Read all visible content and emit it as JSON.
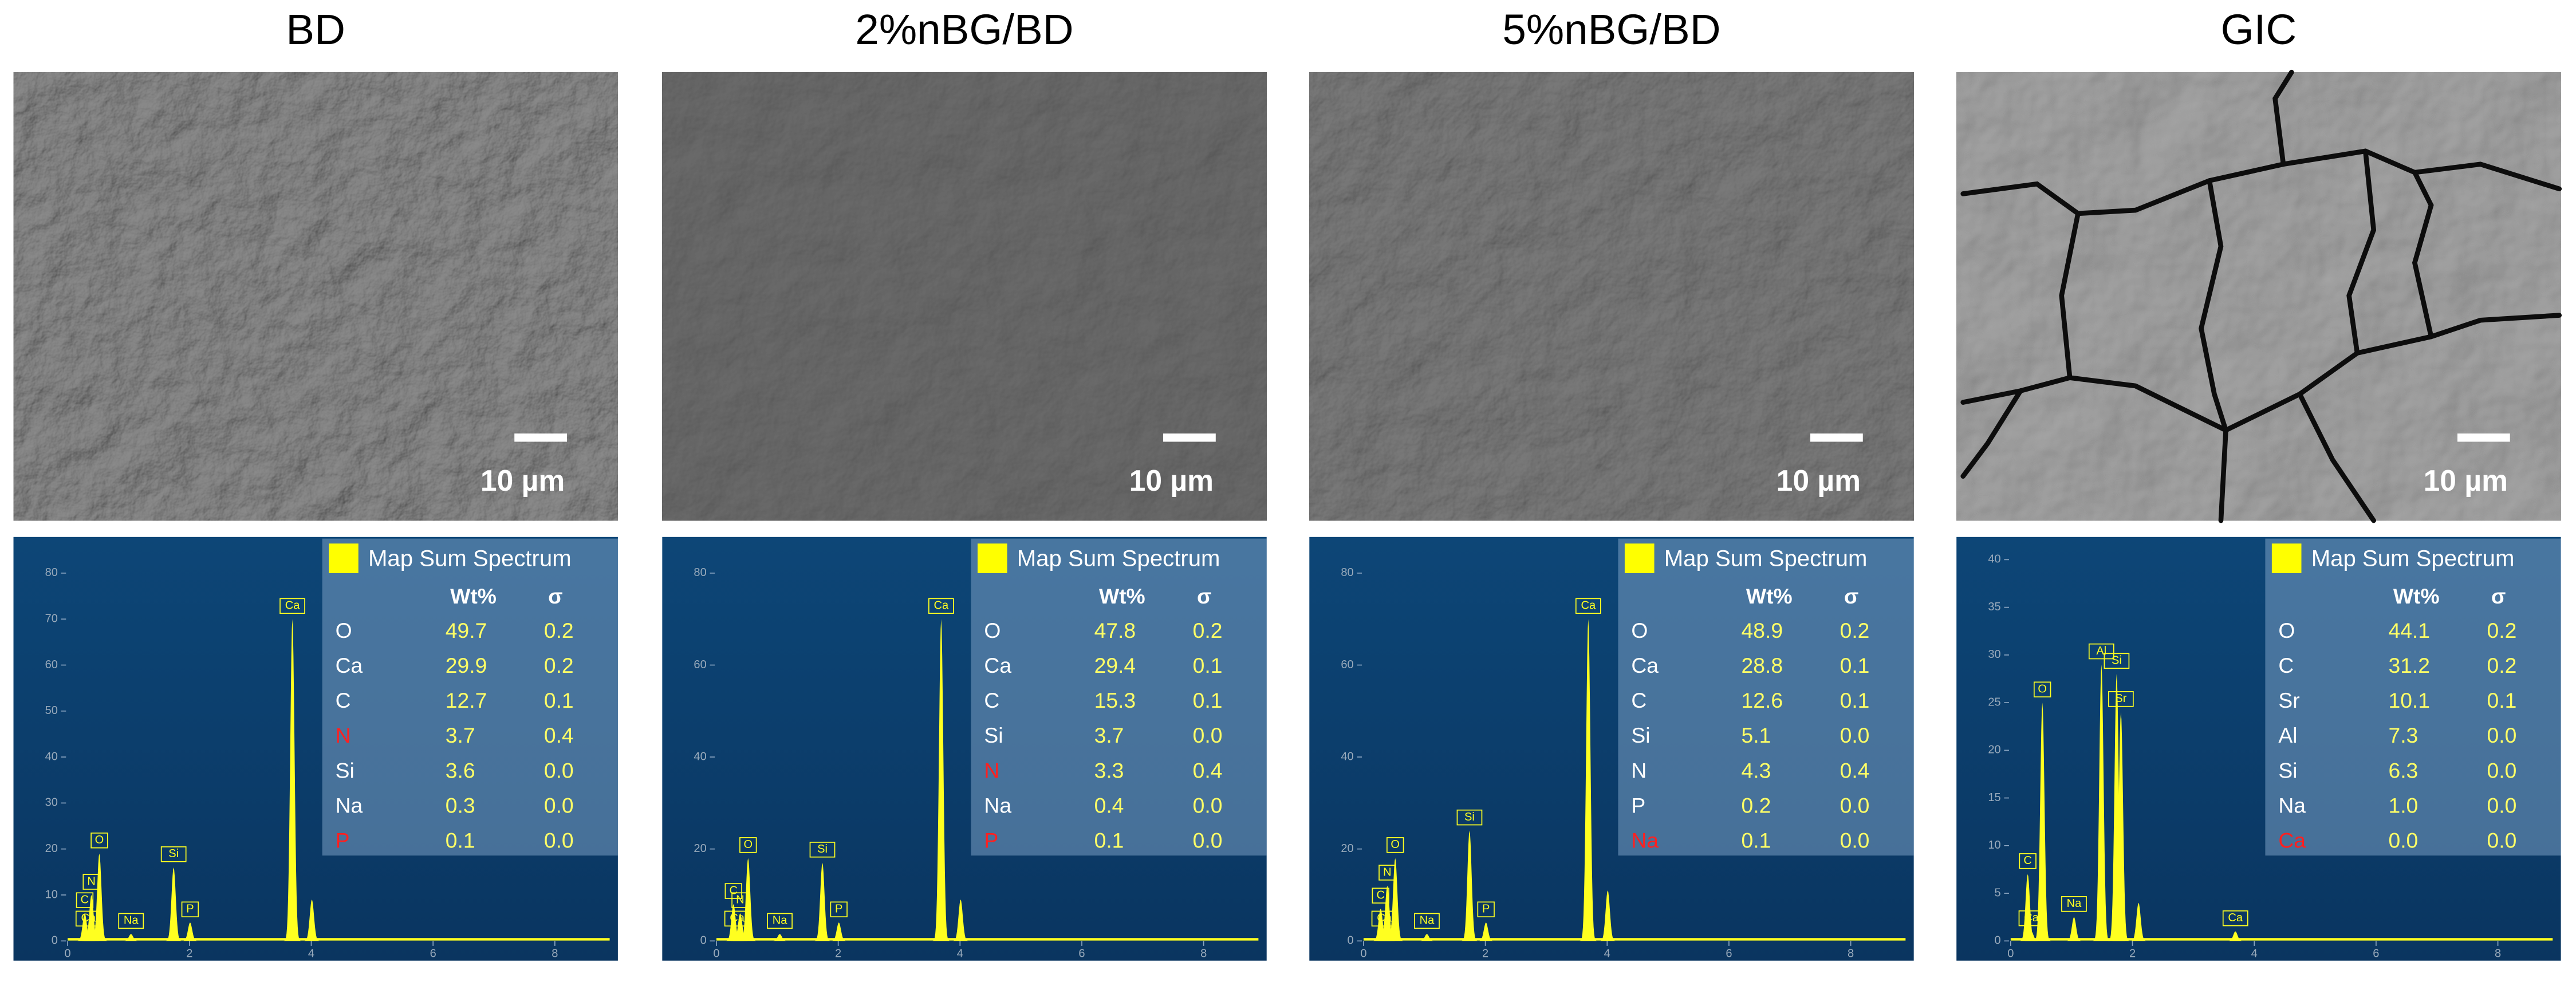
{
  "panels": [
    {
      "title": "BD",
      "scale_label": "10 µm",
      "spectrum": {
        "legend_title": "Map Sum Spectrum",
        "header": [
          "Wt%",
          "σ"
        ],
        "rows": [
          {
            "element": "O",
            "wt": "49.7",
            "sigma": "0.2",
            "color": "#ffffff"
          },
          {
            "element": "Ca",
            "wt": "29.9",
            "sigma": "0.2",
            "color": "#ffffff"
          },
          {
            "element": "C",
            "wt": "12.7",
            "sigma": "0.1",
            "color": "#ffffff"
          },
          {
            "element": "N",
            "wt": "3.7",
            "sigma": "0.4",
            "color": "#ff2020"
          },
          {
            "element": "Si",
            "wt": "3.6",
            "sigma": "0.0",
            "color": "#ffffff"
          },
          {
            "element": "Na",
            "wt": "0.3",
            "sigma": "0.0",
            "color": "#ffffff"
          },
          {
            "element": "P",
            "wt": "0.1",
            "sigma": "0.0",
            "color": "#ff2020"
          }
        ],
        "xlim": [
          0,
          8.9
        ],
        "xticks": [
          0,
          2,
          4,
          6,
          8
        ],
        "ylim": [
          0,
          85
        ],
        "yticks": [
          0,
          10,
          20,
          30,
          40,
          50,
          60,
          70,
          80
        ],
        "peaks": [
          {
            "label": "C",
            "x": 0.28,
            "y": 6
          },
          {
            "label": "Ca",
            "x": 0.34,
            "y": 2
          },
          {
            "label": "N",
            "x": 0.39,
            "y": 10
          },
          {
            "label": "O",
            "x": 0.52,
            "y": 19
          },
          {
            "label": "Na",
            "x": 1.04,
            "y": 1.5
          },
          {
            "label": "Si",
            "x": 1.74,
            "y": 16
          },
          {
            "label": "P",
            "x": 2.01,
            "y": 4
          },
          {
            "label": "Ca",
            "x": 3.69,
            "y": 70
          },
          {
            "label": null,
            "x": 4.01,
            "y": 9
          }
        ]
      }
    },
    {
      "title": "2%nBG/BD",
      "scale_label": "10 µm",
      "spectrum": {
        "legend_title": "Map Sum Spectrum",
        "header": [
          "Wt%",
          "σ"
        ],
        "rows": [
          {
            "element": "O",
            "wt": "47.8",
            "sigma": "0.2",
            "color": "#ffffff"
          },
          {
            "element": "Ca",
            "wt": "29.4",
            "sigma": "0.1",
            "color": "#ffffff"
          },
          {
            "element": "C",
            "wt": "15.3",
            "sigma": "0.1",
            "color": "#ffffff"
          },
          {
            "element": "Si",
            "wt": "3.7",
            "sigma": "0.0",
            "color": "#ffffff"
          },
          {
            "element": "N",
            "wt": "3.3",
            "sigma": "0.4",
            "color": "#ff2020"
          },
          {
            "element": "Na",
            "wt": "0.4",
            "sigma": "0.0",
            "color": "#ffffff"
          },
          {
            "element": "P",
            "wt": "0.1",
            "sigma": "0.0",
            "color": "#ff2020"
          }
        ],
        "xlim": [
          0,
          8.9
        ],
        "xticks": [
          0,
          2,
          4,
          6,
          8
        ],
        "ylim": [
          0,
          85
        ],
        "yticks": [
          0,
          20,
          40,
          60,
          80
        ],
        "peaks": [
          {
            "label": "C",
            "x": 0.28,
            "y": 8
          },
          {
            "label": "Ca",
            "x": 0.34,
            "y": 2
          },
          {
            "label": "N",
            "x": 0.39,
            "y": 6
          },
          {
            "label": "O",
            "x": 0.52,
            "y": 18
          },
          {
            "label": "Na",
            "x": 1.04,
            "y": 1.5
          },
          {
            "label": "Si",
            "x": 1.74,
            "y": 17
          },
          {
            "label": "P",
            "x": 2.01,
            "y": 4
          },
          {
            "label": "Ca",
            "x": 3.69,
            "y": 70
          },
          {
            "label": null,
            "x": 4.01,
            "y": 9
          }
        ]
      }
    },
    {
      "title": "5%nBG/BD",
      "scale_label": "10 µm",
      "spectrum": {
        "legend_title": "Map Sum Spectrum",
        "header": [
          "Wt%",
          "σ"
        ],
        "rows": [
          {
            "element": "O",
            "wt": "48.9",
            "sigma": "0.2",
            "color": "#ffffff"
          },
          {
            "element": "Ca",
            "wt": "28.8",
            "sigma": "0.1",
            "color": "#ffffff"
          },
          {
            "element": "C",
            "wt": "12.6",
            "sigma": "0.1",
            "color": "#ffffff"
          },
          {
            "element": "Si",
            "wt": "5.1",
            "sigma": "0.0",
            "color": "#ffffff"
          },
          {
            "element": "N",
            "wt": "4.3",
            "sigma": "0.4",
            "color": "#ffffff"
          },
          {
            "element": "P",
            "wt": "0.2",
            "sigma": "0.0",
            "color": "#ffffff"
          },
          {
            "element": "Na",
            "wt": "0.1",
            "sigma": "0.0",
            "color": "#ff2020"
          }
        ],
        "xlim": [
          0,
          8.9
        ],
        "xticks": [
          0,
          2,
          4,
          6,
          8
        ],
        "ylim": [
          0,
          85
        ],
        "yticks": [
          0,
          20,
          40,
          60,
          80
        ],
        "peaks": [
          {
            "label": "C",
            "x": 0.28,
            "y": 7
          },
          {
            "label": "Ca",
            "x": 0.34,
            "y": 2
          },
          {
            "label": "N",
            "x": 0.39,
            "y": 12
          },
          {
            "label": "O",
            "x": 0.52,
            "y": 18
          },
          {
            "label": "Na",
            "x": 1.04,
            "y": 1.5
          },
          {
            "label": "Si",
            "x": 1.74,
            "y": 24
          },
          {
            "label": "P",
            "x": 2.01,
            "y": 4
          },
          {
            "label": "Ca",
            "x": 3.69,
            "y": 70
          },
          {
            "label": null,
            "x": 4.01,
            "y": 11
          }
        ]
      }
    },
    {
      "title": "GIC",
      "scale_label": "10 µm",
      "spectrum": {
        "legend_title": "Map Sum Spectrum",
        "header": [
          "Wt%",
          "σ"
        ],
        "rows": [
          {
            "element": "O",
            "wt": "44.1",
            "sigma": "0.2",
            "color": "#ffffff"
          },
          {
            "element": "C",
            "wt": "31.2",
            "sigma": "0.2",
            "color": "#ffffff"
          },
          {
            "element": "Sr",
            "wt": "10.1",
            "sigma": "0.1",
            "color": "#ffffff"
          },
          {
            "element": "Al",
            "wt": "7.3",
            "sigma": "0.0",
            "color": "#ffffff"
          },
          {
            "element": "Si",
            "wt": "6.3",
            "sigma": "0.0",
            "color": "#ffffff"
          },
          {
            "element": "Na",
            "wt": "1.0",
            "sigma": "0.0",
            "color": "#ffffff"
          },
          {
            "element": "Ca",
            "wt": "0.0",
            "sigma": "0.0",
            "color": "#ff2020"
          }
        ],
        "xlim": [
          0,
          8.9
        ],
        "xticks": [
          0,
          2,
          4,
          6,
          8
        ],
        "ylim": [
          0,
          41
        ],
        "yticks": [
          0,
          5,
          10,
          15,
          20,
          25,
          30,
          35,
          40
        ],
        "peaks": [
          {
            "label": "C",
            "x": 0.28,
            "y": 7
          },
          {
            "label": "Ca",
            "x": 0.34,
            "y": 1
          },
          {
            "label": "O",
            "x": 0.52,
            "y": 25
          },
          {
            "label": "Na",
            "x": 1.04,
            "y": 2.5
          },
          {
            "label": "Al",
            "x": 1.49,
            "y": 29
          },
          {
            "label": "Si",
            "x": 1.74,
            "y": 28
          },
          {
            "label": "Sr",
            "x": 1.81,
            "y": 24
          },
          {
            "label": null,
            "x": 2.1,
            "y": 4
          },
          {
            "label": "Ca",
            "x": 3.69,
            "y": 1
          }
        ]
      }
    }
  ]
}
